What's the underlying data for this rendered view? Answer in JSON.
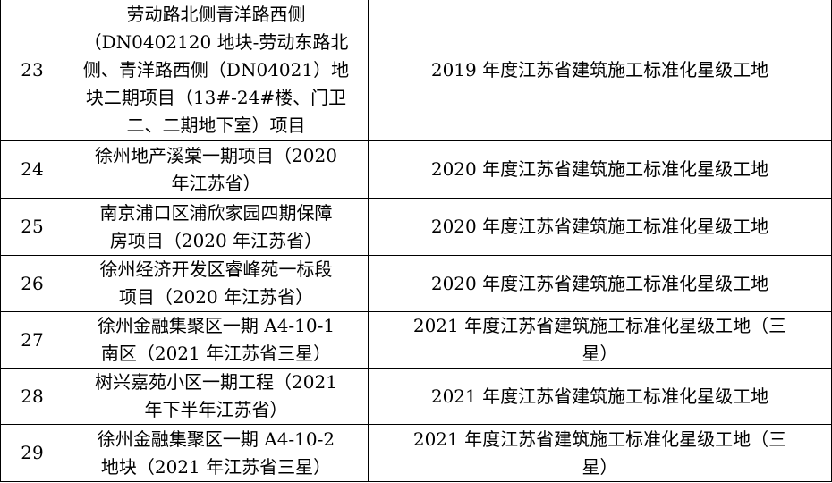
{
  "rows": [
    {
      "no": "23",
      "project": [
        "劳动路北侧青洋路西侧",
        "（DN0402120 地块-劳动东路北",
        "侧、青洋路西侧（DN04021）地",
        "块二期项目（13#-24#楼、门卫",
        "二、二期地下室）项目"
      ],
      "award": [
        "2019 年度江苏省建筑施工标准化星级工地"
      ]
    },
    {
      "no": "24",
      "project": [
        "徐州地产溪棠一期项目（2020",
        "年江苏省）"
      ],
      "award": [
        "2020 年度江苏省建筑施工标准化星级工地"
      ]
    },
    {
      "no": "25",
      "project": [
        "南京浦口区浦欣家园四期保障",
        "房项目（2020 年江苏省）"
      ],
      "award": [
        "2020 年度江苏省建筑施工标准化星级工地"
      ]
    },
    {
      "no": "26",
      "project": [
        "徐州经济开发区睿峰苑一标段",
        "项目（2020 年江苏省）"
      ],
      "award": [
        "2020 年度江苏省建筑施工标准化星级工地"
      ]
    },
    {
      "no": "27",
      "project": [
        "徐州金融集聚区一期 A4-10-1",
        "南区（2021 年江苏省三星）"
      ],
      "award": [
        "2021 年度江苏省建筑施工标准化星级工地（三",
        "星）"
      ]
    },
    {
      "no": "28",
      "project": [
        "树兴嘉苑小区一期工程（2021",
        "年下半年江苏省）"
      ],
      "award": [
        "2021 年度江苏省建筑施工标准化星级工地"
      ]
    },
    {
      "no": "29",
      "project": [
        "徐州金融集聚区一期 A4-10-2",
        "地块（2021 年江苏省三星）"
      ],
      "award": [
        "2021 年度江苏省建筑施工标准化星级工地（三",
        "星）"
      ]
    }
  ]
}
